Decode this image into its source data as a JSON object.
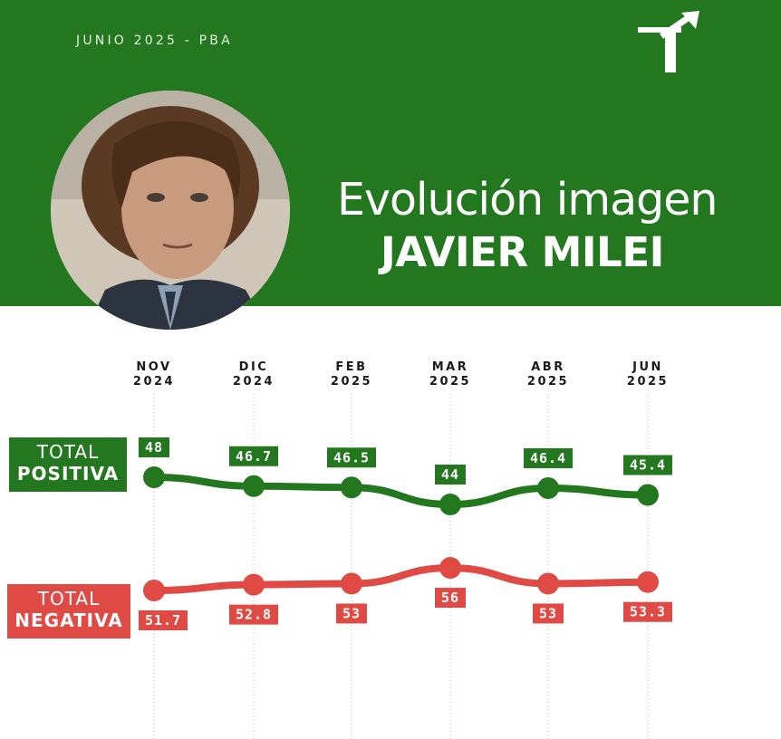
{
  "header": {
    "subtitle": "JUNIO 2025 - PBA",
    "title_line1": "Evolución imagen",
    "title_line2": "JAVIER MILEI"
  },
  "labels": {
    "positive": {
      "line1": "TOTAL",
      "line2": "POSITIVA"
    },
    "negative": {
      "line1": "TOTAL",
      "line2": "NEGATIVA"
    }
  },
  "chart_data": {
    "type": "line",
    "categories": [
      {
        "month": "NOV",
        "year": "2024"
      },
      {
        "month": "DIC",
        "year": "2024"
      },
      {
        "month": "FEB",
        "year": "2025"
      },
      {
        "month": "MAR",
        "year": "2025"
      },
      {
        "month": "ABR",
        "year": "2025"
      },
      {
        "month": "JUN",
        "year": "2025"
      }
    ],
    "series": [
      {
        "name": "TOTAL POSITIVA",
        "color": "#23771f",
        "values": [
          48,
          46.7,
          46.5,
          44,
          46.4,
          45.4
        ],
        "labels": [
          "48",
          "46.7",
          "46.5",
          "44",
          "46.4",
          "45.4"
        ]
      },
      {
        "name": "TOTAL NEGATIVA",
        "color": "#e04a44",
        "values": [
          51.7,
          52.8,
          53,
          56,
          53,
          53.3
        ],
        "labels": [
          "51.7",
          "52.8",
          "53",
          "56",
          "53",
          "53.3"
        ]
      }
    ],
    "grid": "vertical dotted",
    "legend": "left"
  },
  "colors": {
    "green": "#23771f",
    "red": "#e04a44"
  }
}
